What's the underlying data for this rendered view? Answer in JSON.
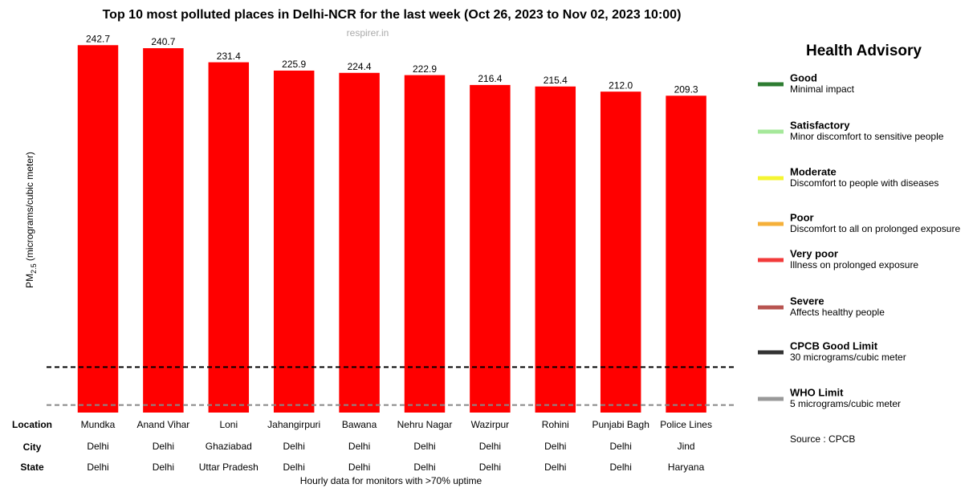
{
  "chart_data": {
    "type": "bar",
    "title": "Top 10 most polluted places in Delhi-NCR for the last week (Oct 26, 2023 to Nov 02, 2023 10:00)",
    "watermark": "respirer.in",
    "y_label": {
      "main": "PM",
      "subscript": "2.5",
      "rest": " (micrograms/cubic meter)"
    },
    "row_labels": [
      "Location",
      "City",
      "State"
    ],
    "categories": [
      "Mundka",
      "Anand Vihar",
      "Loni",
      "Jahangirpuri",
      "Bawana",
      "Nehru Nagar",
      "Wazirpur",
      "Rohini",
      "Punjabi Bagh",
      "Police Lines"
    ],
    "city": [
      "Delhi",
      "Delhi",
      "Ghaziabad",
      "Delhi",
      "Delhi",
      "Delhi",
      "Delhi",
      "Delhi",
      "Delhi",
      "Jind"
    ],
    "state": [
      "Delhi",
      "Delhi",
      "Uttar Pradesh",
      "Delhi",
      "Delhi",
      "Delhi",
      "Delhi",
      "Delhi",
      "Delhi",
      "Haryana"
    ],
    "values": [
      242.7,
      240.7,
      231.4,
      225.9,
      224.4,
      222.9,
      216.4,
      215.4,
      212,
      209.3
    ],
    "value_labels": [
      "242.7",
      "240.7",
      "231.4",
      "225.9",
      "224.4",
      "222.9",
      "216.4",
      "215.4",
      "212.0",
      "209.3"
    ],
    "color": "#ff0000",
    "ylim": [
      0,
      250
    ],
    "reference_lines": [
      {
        "value": 30,
        "color": "#000000"
      },
      {
        "value": 5,
        "color": "#888888"
      }
    ],
    "footnote": "Hourly data for monitors with >70% uptime",
    "source": "Source : CPCB",
    "legend": {
      "title": "Health Advisory",
      "items": [
        {
          "name": "Good",
          "description": "Minimal impact",
          "color": "#2e7d32"
        },
        {
          "name": "Satisfactory",
          "description": "Minor discomfort to sensitive people",
          "color": "#a5e89a"
        },
        {
          "name": "Moderate",
          "description": "Discomfort to people with diseases",
          "color": "#f5f532"
        },
        {
          "name": "Poor",
          "description": "Discomfort to all on prolonged exposure",
          "color": "#f5b03a"
        },
        {
          "name": "Very poor",
          "description": "Illness on prolonged exposure",
          "color": "#f23a3a"
        },
        {
          "name": "Severe",
          "description": "Affects healthy people",
          "color": "#b85450"
        },
        {
          "name": "CPCB Good Limit",
          "description": "30 micrograms/cubic meter",
          "color": "#333333"
        },
        {
          "name": "WHO Limit",
          "description": "5 micrograms/cubic meter",
          "color": "#999999"
        }
      ]
    }
  }
}
